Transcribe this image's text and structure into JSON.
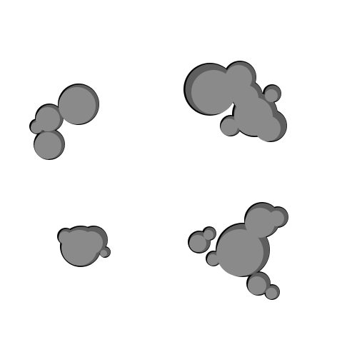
{
  "sprite_sheet": {
    "background_color": "#ffffff",
    "sprite_fill_color": "#8a8a8a",
    "sprite_shadow_color": "#5e5e5e",
    "sprite_outline_color": "#000000",
    "sprites": [
      {
        "id": "smoke-puff-1",
        "kind": "smoke-cloud"
      },
      {
        "id": "smoke-puff-2",
        "kind": "smoke-cloud"
      },
      {
        "id": "smoke-puff-3",
        "kind": "smoke-cloud"
      },
      {
        "id": "smoke-puff-4",
        "kind": "smoke-cloud"
      }
    ]
  }
}
